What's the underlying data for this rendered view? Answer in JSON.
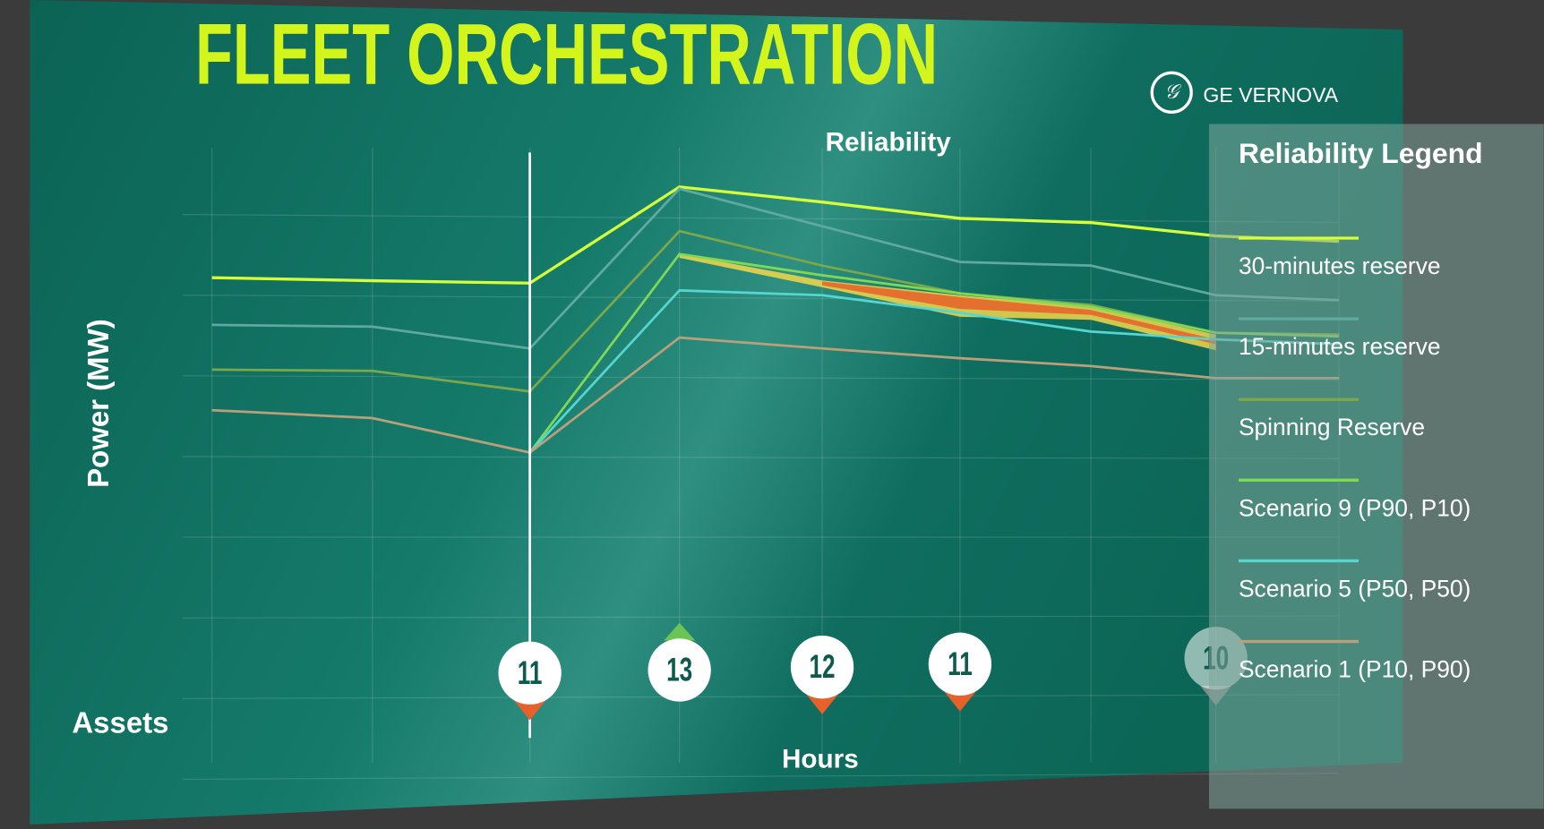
{
  "brand": "GE VERNOVA",
  "chart_data": {
    "type": "line",
    "title": "FLEET ORCHESTRATION",
    "subtitle": "Reliability",
    "y_label": "Power (MW)",
    "x_label": "Hours",
    "assets_label": "Assets",
    "legend_title": "Reliability Legend",
    "categories": [
      null,
      null,
      null,
      null,
      null,
      null,
      null,
      null,
      null
    ],
    "ylim": [
      0,
      100
    ],
    "grid": true,
    "series": [
      {
        "name": "30-minutes reserve",
        "color": "#d4ff3a",
        "values": [
          78.5,
          78,
          77.6,
          93.5,
          91,
          88.3,
          87.6,
          85.4,
          84.5
        ]
      },
      {
        "name": "15-minutes reserve",
        "color": "#5fa9a0",
        "values": [
          70.7,
          70.4,
          66.8,
          93.2,
          87,
          81.1,
          80.5,
          75.6,
          74.8
        ]
      },
      {
        "name": "Spinning Reserve",
        "color": "#7aa84a",
        "values": [
          63.3,
          63.1,
          59.7,
          86.2,
          80.5,
          75.9,
          74,
          69.4,
          69.1
        ]
      },
      {
        "name": "Scenario 9 (P90, P10)",
        "color": "#7ed957",
        "values": [
          null,
          null,
          49.6,
          82.4,
          78.9,
          75.9,
          73.7,
          69.4,
          68.8
        ]
      },
      {
        "name": "Scenario 5 (P50, P50)",
        "color": "#55d6d0",
        "values": [
          null,
          null,
          49.6,
          76.4,
          75.6,
          72.7,
          69.6,
          68.3,
          67.5
        ]
      },
      {
        "name": "Scenario 1 (P10, P90)",
        "color": "#b9a07a",
        "values": [
          56.6,
          55.3,
          49.6,
          68.6,
          66.8,
          65.2,
          63.9,
          61.9,
          61.9
        ]
      }
    ],
    "assets": {
      "values": [
        null,
        null,
        11,
        13,
        12,
        11,
        null,
        10,
        null
      ],
      "trend": [
        null,
        null,
        "down",
        "up",
        "down",
        "down",
        null,
        "down",
        null
      ]
    }
  }
}
